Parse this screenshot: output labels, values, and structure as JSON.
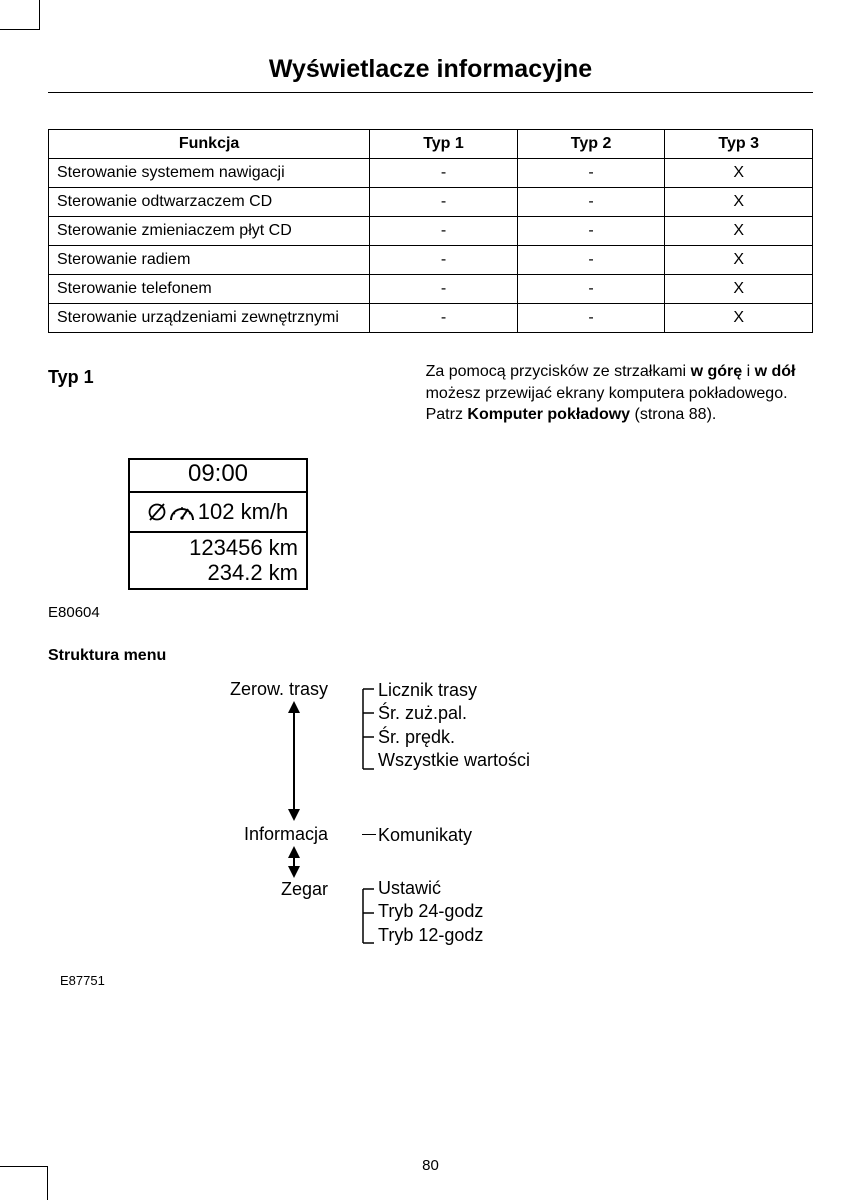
{
  "title": "Wyświetlacze informacyjne",
  "page_number": "80",
  "table": {
    "headers": [
      "Funkcja",
      "Typ 1",
      "Typ 2",
      "Typ 3"
    ],
    "rows": [
      [
        "Sterowanie systemem nawigacji",
        "-",
        "-",
        "X"
      ],
      [
        "Sterowanie odtwarzaczem CD",
        "-",
        "-",
        "X"
      ],
      [
        "Sterowanie zmieniaczem płyt CD",
        "-",
        "-",
        "X"
      ],
      [
        "Sterowanie radiem",
        "-",
        "-",
        "X"
      ],
      [
        "Sterowanie telefonem",
        "-",
        "-",
        "X"
      ],
      [
        "Sterowanie urządzeniami zewnętrznymi",
        "-",
        "-",
        "X"
      ]
    ]
  },
  "typ1_heading": "Typ 1",
  "display": {
    "time": "09:00",
    "speed": "102 km/h",
    "odo": "123456 km",
    "trip": "234.2 km"
  },
  "fig1_id": "E80604",
  "paragraph": {
    "prefix": "Za pomocą przycisków ze strzałkami ",
    "b1": "w górę",
    "mid1": " i ",
    "b2": "w dół",
    "mid2": " możesz przewijać ekrany komputera pokładowego.  Patrz ",
    "b3": "Komputer pokładowy",
    "suffix": " (strona 88)."
  },
  "menu_heading": "Struktura menu",
  "menu": {
    "top": "Zerow. trasy",
    "top_sub": [
      "Licznik trasy",
      "Śr. zuż.pal.",
      "Śr. prędk.",
      "Wszystkie wartości"
    ],
    "mid": "Informacja",
    "mid_sub": [
      "Komunikaty"
    ],
    "bot": "Zegar",
    "bot_sub": [
      "Ustawić",
      "Tryb 24-godz",
      "Tryb 12-godz"
    ]
  },
  "fig2_id": "E87751"
}
